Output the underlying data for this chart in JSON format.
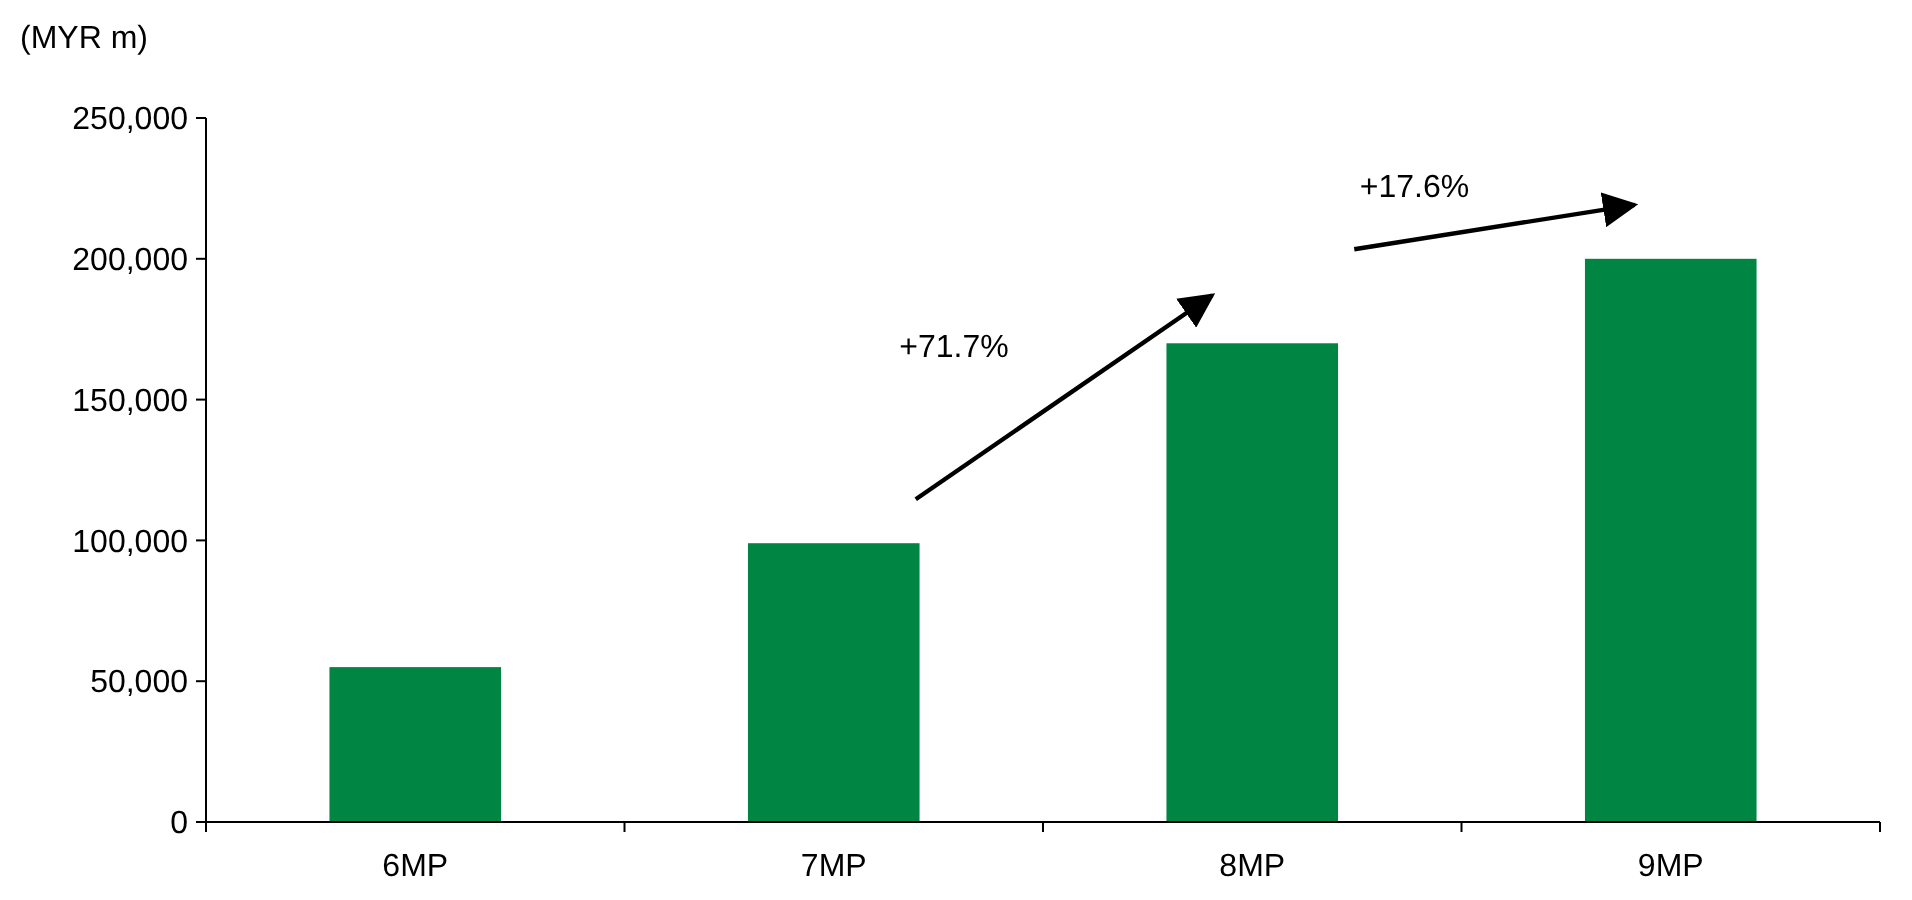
{
  "chart_data": {
    "type": "bar",
    "ylabel": "(MYR m)",
    "categories": [
      "6MP",
      "7MP",
      "8MP",
      "9MP"
    ],
    "values": [
      55000,
      99000,
      170000,
      200000
    ],
    "color": "#008542",
    "ylim": [
      0,
      250000
    ],
    "yticks": [
      {
        "value": 0,
        "label": "0"
      },
      {
        "value": 50000,
        "label": "50,000"
      },
      {
        "value": 100000,
        "label": "100,000"
      },
      {
        "value": 150000,
        "label": "150,000"
      },
      {
        "value": 200000,
        "label": "200,000"
      },
      {
        "value": 250000,
        "label": "250,000"
      }
    ],
    "annotations": [
      "+71.7%",
      "+17.6%"
    ]
  }
}
